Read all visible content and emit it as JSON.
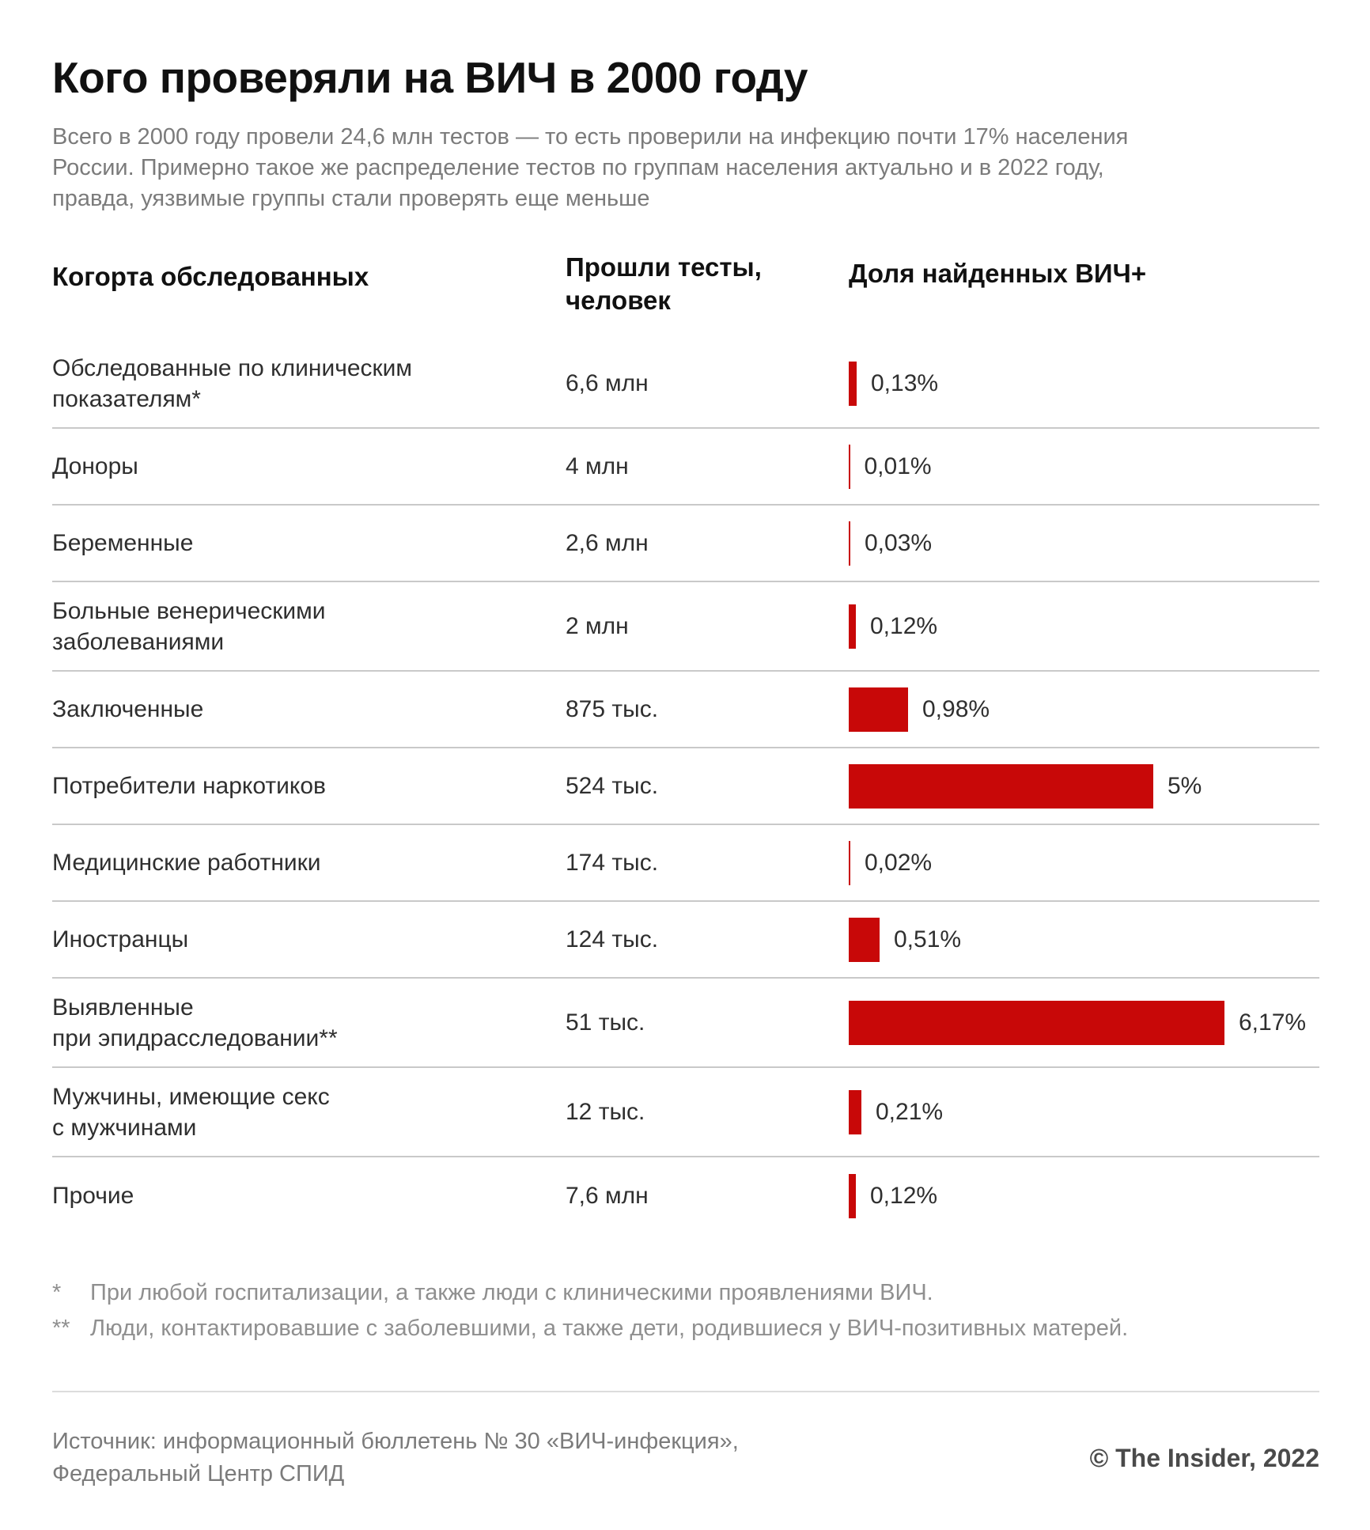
{
  "header": {
    "title": "Кого проверяли на ВИЧ в 2000 году",
    "subtitle": "Всего в 2000 году провели 24,6 млн тестов — то есть проверили на инфекцию почти 17% населения\nРоссии. Примерно такое же распределение тестов по группам населения актуально и в 2022 году,\nправда, уязвимые группы стали проверять еще меньше"
  },
  "table": {
    "columns": {
      "cohort": "Когорта обследованных",
      "tests": "Прошли тесты,\nчеловек",
      "share": "Доля найденных ВИЧ+"
    },
    "rows": [
      {
        "label": "Обследованные по клиническим\nпоказателям*",
        "tests": "6,6 млн",
        "pct": 0.13,
        "pct_label": "0,13%"
      },
      {
        "label": "Доноры",
        "tests": "4 млн",
        "pct": 0.01,
        "pct_label": "0,01%"
      },
      {
        "label": "Беременные",
        "tests": "2,6 млн",
        "pct": 0.03,
        "pct_label": "0,03%"
      },
      {
        "label": "Больные венерическими\nзаболеваниями",
        "tests": "2 млн",
        "pct": 0.12,
        "pct_label": "0,12%"
      },
      {
        "label": "Заключенные",
        "tests": "875 тыс.",
        "pct": 0.98,
        "pct_label": "0,98%"
      },
      {
        "label": "Потребители наркотиков",
        "tests": "524 тыс.",
        "pct": 5,
        "pct_label": "5%"
      },
      {
        "label": "Медицинские работники",
        "tests": "174 тыс.",
        "pct": 0.02,
        "pct_label": "0,02%"
      },
      {
        "label": "Иностранцы",
        "tests": "124 тыс.",
        "pct": 0.51,
        "pct_label": "0,51%"
      },
      {
        "label": "Выявленные\nпри эпидрасследовании**",
        "tests": "51 тыс.",
        "pct": 6.17,
        "pct_label": "6,17%"
      },
      {
        "label": "Мужчины, имеющие секс\nс мужчинами",
        "tests": "12 тыс.",
        "pct": 0.21,
        "pct_label": "0,21%"
      },
      {
        "label": "Прочие",
        "tests": "7,6 млн",
        "pct": 0.12,
        "pct_label": "0,12%"
      }
    ]
  },
  "footnotes": [
    {
      "marker": "*",
      "text": "При любой госпитализации, а также люди с клиническими проявлениями ВИЧ."
    },
    {
      "marker": "**",
      "text": "Люди, контактировавшие с заболевшими, а также дети, родившиеся у ВИЧ-позитивных матерей."
    }
  ],
  "footer": {
    "source": "Источник: информационный бюллетень № 30 «ВИЧ-инфекция»,\nФедеральный Центр СПИД",
    "copyright": "© The Insider, 2022"
  },
  "colors": {
    "bar_red": "#c80808",
    "divider": "#c9c9c9",
    "text_gray": "#7b7b7b"
  },
  "chart_data": {
    "type": "bar",
    "title": "Кого проверяли на ВИЧ в 2000 году",
    "subtitle": "Всего в 2000 году провели 24,6 млн тестов — то есть проверили на инфекцию почти 17% населения России. Примерно такое же распределение тестов по группам населения актуально и в 2022 году, правда, уязвимые группы стали проверять еще меньше",
    "orientation": "horizontal",
    "categories": [
      "Обследованные по клиническим показателям*",
      "Доноры",
      "Беременные",
      "Больные венерическими заболеваниями",
      "Заключенные",
      "Потребители наркотиков",
      "Медицинские работники",
      "Иностранцы",
      "Выявленные при эпидрасследовании**",
      "Мужчины, имеющие секс с мужчинами",
      "Прочие"
    ],
    "series": [
      {
        "name": "Прошли тесты, человек",
        "values_text": [
          "6,6 млн",
          "4 млн",
          "2,6 млн",
          "2 млн",
          "875 тыс.",
          "524 тыс.",
          "174 тыс.",
          "124 тыс.",
          "51 тыс.",
          "12 тыс.",
          "7,6 млн"
        ]
      },
      {
        "name": "Доля найденных ВИЧ+ (%)",
        "values": [
          0.13,
          0.01,
          0.03,
          0.12,
          0.98,
          5,
          0.02,
          0.51,
          6.17,
          0.21,
          0.12
        ]
      }
    ],
    "xlim": [
      0,
      6.5
    ],
    "grid": false,
    "legend_position": "none",
    "bar_color": "#c80808"
  }
}
